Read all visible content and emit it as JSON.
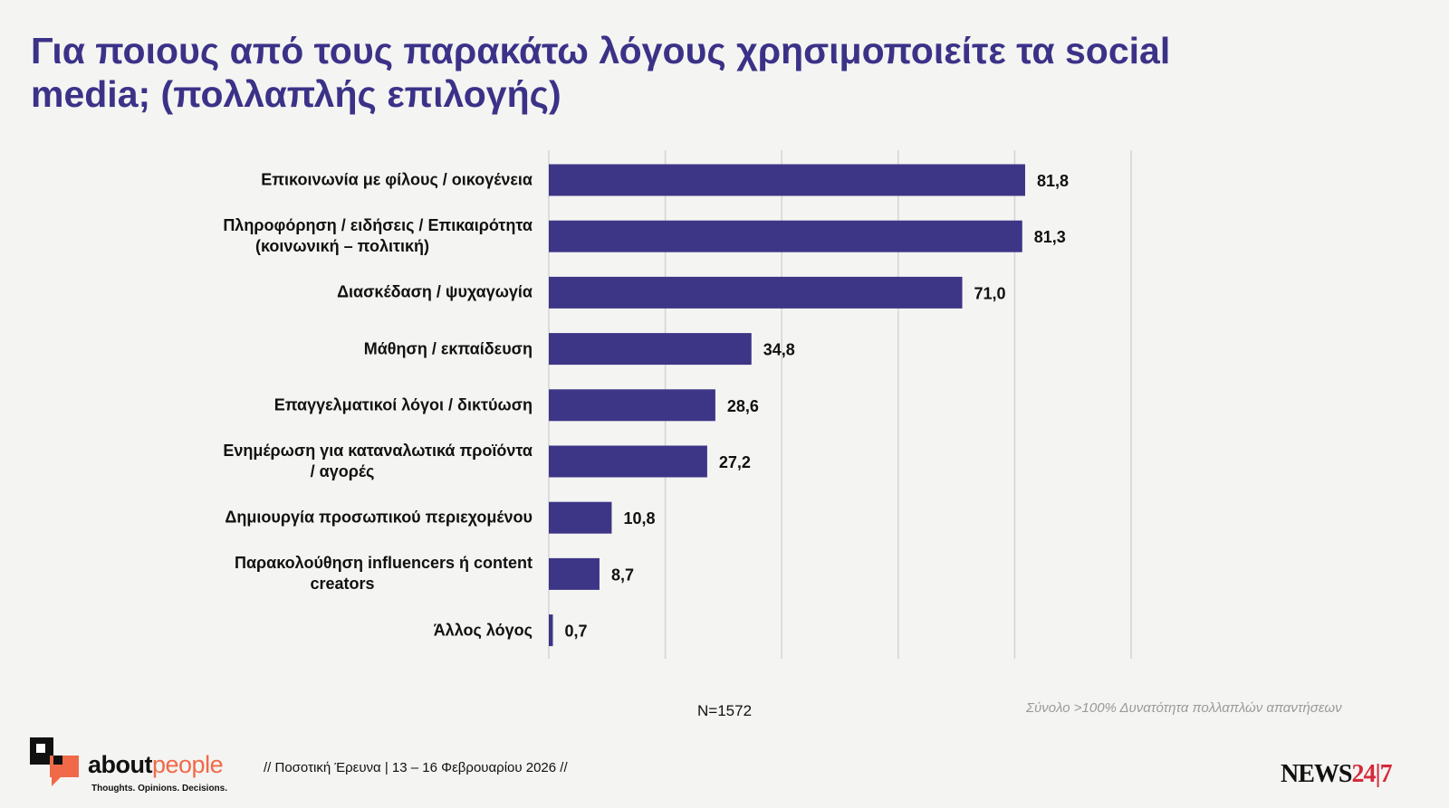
{
  "title": "Για ποιους από τους παρακάτω λόγους χρησιμοποιείτε τα social media; (πολλαπλής επιλογής)",
  "chart_data": {
    "type": "bar",
    "orientation": "horizontal",
    "categories": [
      [
        "Επικοινωνία με φίλους / οικογένεια"
      ],
      [
        "Πληροφόρηση / ειδήσεις / Επικαιρότητα",
        "(κοινωνική – πολιτική)"
      ],
      [
        "Διασκέδαση / ψυχαγωγία"
      ],
      [
        "Μάθηση / εκπαίδευση"
      ],
      [
        "Επαγγελματικοί λόγοι / δικτύωση"
      ],
      [
        "Ενημέρωση για καταναλωτικά προϊόντα",
        "/ αγορές"
      ],
      [
        "Δημιουργία προσωπικού περιεχομένου"
      ],
      [
        "Παρακολούθηση influencers ή content",
        "creators"
      ],
      [
        "Άλλος λόγος"
      ]
    ],
    "values": [
      81.8,
      81.3,
      71.0,
      34.8,
      28.6,
      27.2,
      10.8,
      8.7,
      0.7
    ],
    "value_labels": [
      "81,8",
      "81,3",
      "71,0",
      "34,8",
      "28,6",
      "27,2",
      "10,8",
      "8,7",
      "0,7"
    ],
    "xlim": [
      0,
      100
    ],
    "grid_step": 20,
    "grid": true,
    "bar_color": "#3d3586",
    "grid_color": "#d4d4d4"
  },
  "sample": "N=1572",
  "note": "Σύνολο >100% Δυνατότητα πολλαπλών απαντήσεων",
  "footer": {
    "brand_a": "about",
    "brand_b": "people",
    "tagline": "Thoughts. Opinions. Decisions.",
    "survey": "// Ποσοτική Έρευνα | 13 – 16 Φεβρουαρίου 2026 //",
    "news_a": "NEWS",
    "news_b": "24|7"
  }
}
